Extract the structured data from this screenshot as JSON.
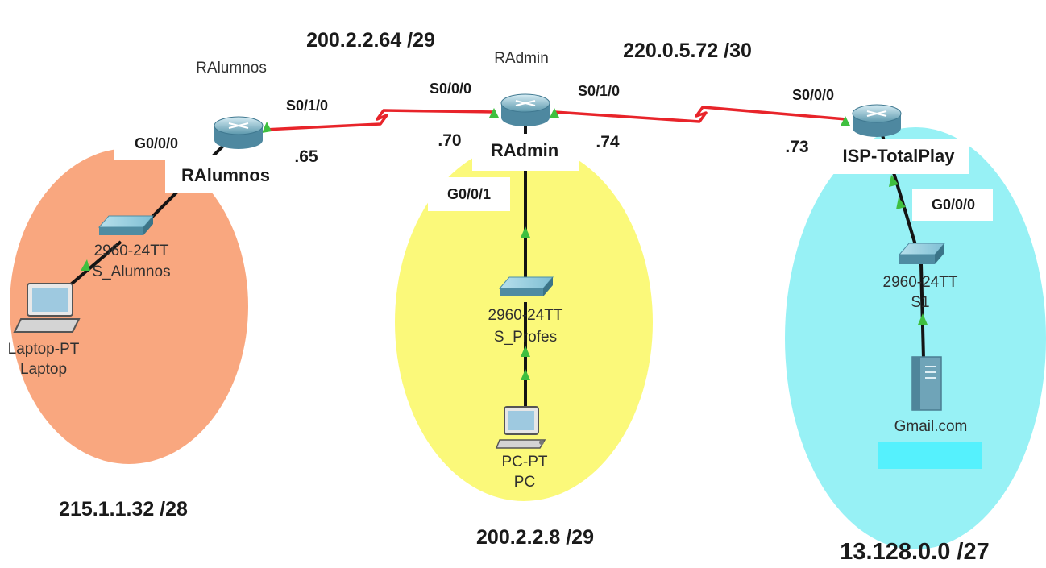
{
  "colors": {
    "zone_alumnos": "#f9a77f",
    "zone_profes": "#fbf97a",
    "zone_isp": "#97f1f5",
    "serial_link": "#e8242a",
    "ethernet_link": "#141414",
    "port_indicator": "#3fbf3f"
  },
  "networks": {
    "alumnos_lan": "215.1.1.32 /28",
    "admin_lan": "200.2.2.8 /29",
    "isp_lan": "13.128.0.0 /27",
    "wan_alumnos_admin": "200.2.2.64 /29",
    "wan_admin_isp": "220.0.5.72 /30"
  },
  "routers": {
    "ralumnos": {
      "pt_name": "RAlumnos",
      "caption": "RAlumnos",
      "g_port": "G0/0/0",
      "s_port": "S0/1/0",
      "ip": ".65",
      "icon": "router-icon"
    },
    "radmin": {
      "pt_name": "RAdmin",
      "caption": "RAdmin",
      "s_port_left": "S0/0/0",
      "s_port_right": "S0/1/0",
      "g_port": "G0/0/1",
      "ip_left": ".70",
      "ip_right": ".74",
      "icon": "router-icon"
    },
    "isp": {
      "caption": "ISP-TotalPlay",
      "s_port": "S0/0/0",
      "g_port": "G0/0/0",
      "ip": ".73",
      "icon": "router-icon"
    }
  },
  "switches": {
    "s_alumnos": {
      "model": "2960-24TT",
      "name": "S_Alumnos",
      "icon": "switch-icon"
    },
    "s_profes": {
      "model": "2960-24TT",
      "name": "S_Profes",
      "icon": "switch-icon"
    },
    "s1": {
      "model": "2960-24TT",
      "name": "S1",
      "icon": "switch-icon"
    }
  },
  "end_devices": {
    "laptop": {
      "model": "Laptop-PT",
      "name": "Laptop",
      "icon": "laptop-icon"
    },
    "pc": {
      "model": "PC-PT",
      "name": "PC",
      "icon": "pc-icon"
    },
    "server": {
      "name": "Gmail.com",
      "icon": "server-icon"
    }
  }
}
